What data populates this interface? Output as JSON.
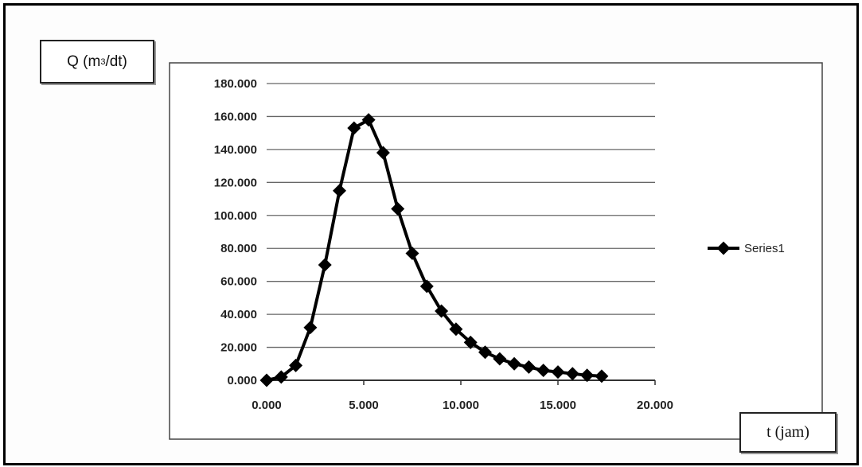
{
  "chart_data": {
    "type": "line",
    "ylabel": {
      "prefix": "Q (m",
      "sup": "3",
      "suffix": "/dt)"
    },
    "xlabel": "t (jam)",
    "x_ticks": [
      "0.000",
      "5.000",
      "10.000",
      "15.000",
      "20.000"
    ],
    "y_ticks": [
      "0.000",
      "20.000",
      "40.000",
      "60.000",
      "80.000",
      "100.000",
      "120.000",
      "140.000",
      "160.000",
      "180.000"
    ],
    "xlim": [
      0,
      20
    ],
    "ylim": [
      0,
      180
    ],
    "grid": "horizontal",
    "legend_position": "right",
    "color": "#000000",
    "series": [
      {
        "name": "Series1",
        "x": [
          0.0,
          0.75,
          1.5,
          2.25,
          3.0,
          3.75,
          4.5,
          5.25,
          6.0,
          6.75,
          7.5,
          8.25,
          9.0,
          9.75,
          10.5,
          11.25,
          12.0,
          12.75,
          13.5,
          14.25,
          15.0,
          15.75,
          16.5,
          17.25
        ],
        "y": [
          0,
          2,
          9,
          32,
          70,
          115,
          153,
          158,
          138,
          104,
          77,
          57,
          42,
          31,
          23,
          17,
          13,
          10,
          8,
          6,
          5,
          4,
          3,
          2.5
        ]
      }
    ]
  }
}
